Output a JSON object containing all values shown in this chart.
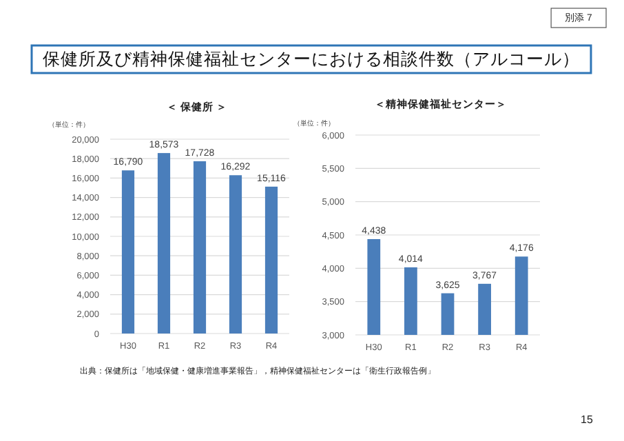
{
  "chart_data": [
    {
      "type": "other",
      "title": "保健所及び精神保健福祉センターにおける相談件数（アルコール）",
      "annotations": [
        "別添 7",
        "出典：保健所は「地域保健・健康増進事業報告」，精神保健福祉センターは「衛生行政報告例」",
        "15"
      ]
    },
    {
      "type": "bar",
      "title": "＜ 保健所 ＞",
      "ylabel": "（単位：件）",
      "categories": [
        "H30",
        "R1",
        "R2",
        "R3",
        "R4"
      ],
      "values": [
        16790,
        18573,
        17728,
        16292,
        15116
      ],
      "value_labels": [
        "16,790",
        "18,573",
        "17,728",
        "16,292",
        "15,116"
      ],
      "color": "#4a7ebb",
      "ylim": [
        0,
        20000
      ],
      "yticks": [
        {
          "value": 0,
          "label": "0"
        },
        {
          "value": 2000,
          "label": "2,000"
        },
        {
          "value": 4000,
          "label": "4,000"
        },
        {
          "value": 6000,
          "label": "6,000"
        },
        {
          "value": 8000,
          "label": "8,000"
        },
        {
          "value": 10000,
          "label": "10,000"
        },
        {
          "value": 12000,
          "label": "12,000"
        },
        {
          "value": 14000,
          "label": "14,000"
        },
        {
          "value": 16000,
          "label": "16,000"
        },
        {
          "value": 18000,
          "label": "18,000"
        },
        {
          "value": 20000,
          "label": "20,000"
        }
      ],
      "grid": "y"
    },
    {
      "type": "bar",
      "title": "＜精神保健福祉センター＞",
      "ylabel": "（単位：件）",
      "categories": [
        "H30",
        "R1",
        "R2",
        "R3",
        "R4"
      ],
      "values": [
        4438,
        4014,
        3625,
        3767,
        4176
      ],
      "value_labels": [
        "4,438",
        "4,014",
        "3,625",
        "3,767",
        "4,176"
      ],
      "color": "#4a7ebb",
      "ylim": [
        3000,
        6000
      ],
      "yticks": [
        {
          "value": 3000,
          "label": "3,000"
        },
        {
          "value": 3500,
          "label": "3,500"
        },
        {
          "value": 4000,
          "label": "4,000"
        },
        {
          "value": 4500,
          "label": "4,500"
        },
        {
          "value": 5000,
          "label": "5,000"
        },
        {
          "value": 5500,
          "label": "5,500"
        },
        {
          "value": 6000,
          "label": "6,000"
        }
      ],
      "grid": "y"
    }
  ]
}
